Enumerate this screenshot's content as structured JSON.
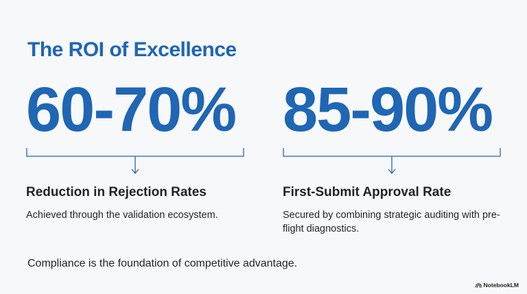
{
  "title": "The ROI of Excellence",
  "stats": [
    {
      "value": "60-70%",
      "label": "Reduction in Rejection Rates",
      "description": "Achieved through the validation ecosystem."
    },
    {
      "value": "85-90%",
      "label": "First-Submit Approval Rate",
      "description": "Secured by combining strategic auditing with pre-flight diagnostics."
    }
  ],
  "footer": "Compliance is the foundation of competitive advantage.",
  "brand": "NotebookLM",
  "colors": {
    "accent": "#1f66b4",
    "text": "#1f2329",
    "background": "#f7f8f9"
  }
}
